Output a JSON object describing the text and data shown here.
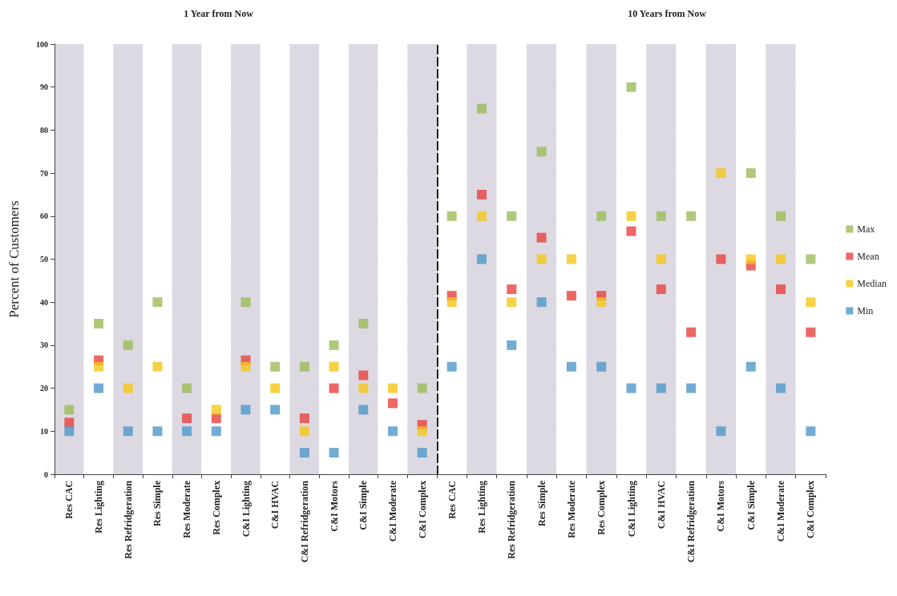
{
  "chart_data": [
    {
      "type": "scatter",
      "title": "1 Year from Now",
      "ylabel": "Percent of Customers",
      "categories": [
        "Res CAC",
        "Res Lighting",
        "Res Refridgeration",
        "Res Simple",
        "Res Moderate",
        "Res Complex",
        "C&I Lighting",
        "C&I HVAC",
        "C&I Refridgeration",
        "C&I Motors",
        "C&I Simple",
        "C&I Moderate",
        "C&I Complex"
      ],
      "series": [
        {
          "color": "#9bbb59",
          "values": [
            15,
            35,
            30,
            40,
            20,
            null,
            40,
            25,
            25,
            30,
            35,
            null,
            20
          ]
        },
        {
          "color": "#e8413e",
          "values": [
            12,
            26.5,
            null,
            null,
            13,
            13,
            26.5,
            null,
            13,
            20,
            23,
            16.5,
            11.5
          ]
        },
        {
          "color": "#f5c518",
          "values": [
            null,
            25,
            20,
            25,
            null,
            15,
            25,
            20,
            10,
            25,
            20,
            20,
            10
          ]
        },
        {
          "color": "#4f97c9",
          "values": [
            10,
            20,
            10,
            10,
            10,
            10,
            15,
            15,
            5,
            5,
            15,
            10,
            5
          ]
        }
      ],
      "ylim": [
        0,
        100
      ],
      "yticks": [
        0,
        10,
        20,
        30,
        40,
        50,
        60,
        70,
        80,
        90,
        100
      ],
      "grid": "y",
      "marker": "square",
      "legend": false
    },
    {
      "type": "scatter",
      "title": "10 Years from Now",
      "categories": [
        "Res CAC",
        "Res Lighting",
        "Res Refridgeration",
        "Res Simple",
        "Res Moderate",
        "Res Complex",
        "C&I Lighting",
        "C&I HVAC",
        "C&I Refridgeration",
        "C&I Motors",
        "C&I Simple",
        "C&I Moderate",
        "C&I Complex"
      ],
      "series": [
        {
          "name": "Max",
          "color": "#9bbb59",
          "values": [
            60,
            85,
            60,
            75,
            null,
            60,
            90,
            60,
            60,
            null,
            70,
            60,
            50
          ]
        },
        {
          "name": "Mean",
          "color": "#e8413e",
          "values": [
            41.5,
            65,
            43,
            55,
            41.5,
            41.5,
            56.5,
            43,
            33,
            50,
            48.5,
            43,
            33
          ]
        },
        {
          "name": "Median",
          "color": "#f5c518",
          "values": [
            40,
            60,
            40,
            50,
            50,
            40,
            60,
            50,
            null,
            70,
            50,
            50,
            40
          ]
        },
        {
          "name": "Min",
          "color": "#4f97c9",
          "values": [
            25,
            50,
            30,
            40,
            25,
            25,
            20,
            20,
            20,
            10,
            25,
            20,
            10
          ]
        }
      ],
      "ylim": [
        0,
        100
      ],
      "yticks": [
        0,
        10,
        20,
        30,
        40,
        50,
        60,
        70,
        80,
        90,
        100
      ],
      "grid": "y",
      "marker": "square",
      "legend": "right",
      "tick_labels": "x"
    }
  ]
}
